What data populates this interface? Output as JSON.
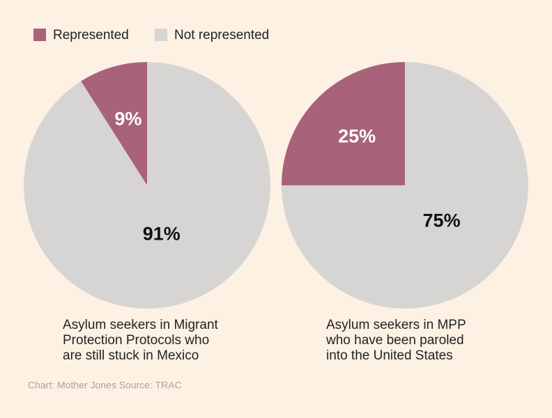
{
  "legend": {
    "position": "top-left"
  },
  "source": "Chart: Mother Jones Source: TRAC",
  "chart_data": [
    {
      "type": "pie",
      "categories": [
        "Represented",
        "Not represented"
      ],
      "values": [
        9,
        91
      ],
      "value_labels": [
        "9%",
        "91%"
      ],
      "colors": [
        "#a8637a",
        "#d7d5d3"
      ],
      "caption": [
        "Asylum seekers in Migrant",
        "Protection Protocols who",
        "are still stuck in Mexico"
      ]
    },
    {
      "type": "pie",
      "categories": [
        "Represented",
        "Not represented"
      ],
      "values": [
        25,
        75
      ],
      "value_labels": [
        "25%",
        "75%"
      ],
      "colors": [
        "#a8637a",
        "#d7d5d3"
      ],
      "caption": [
        "Asylum seekers in MPP",
        "who have been paroled",
        "into the United States"
      ]
    }
  ]
}
